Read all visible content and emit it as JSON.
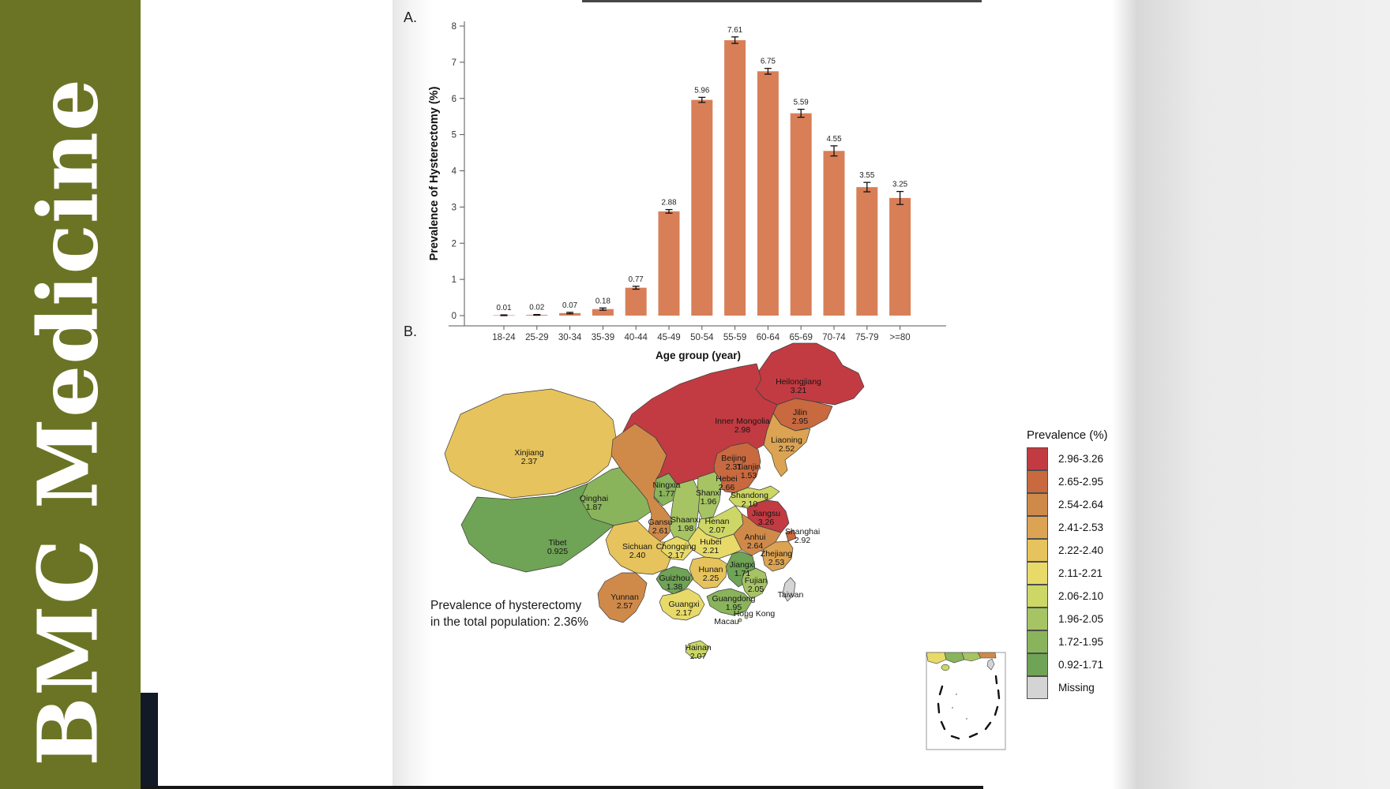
{
  "sidebar": {
    "journal_title": "BMC Medicine",
    "bg_color": "#6b7424"
  },
  "figure": {
    "panel_a_label": "A.",
    "panel_b_label": "B."
  },
  "chart_data": [
    {
      "type": "bar",
      "title": "",
      "xlabel": "Age group (year)",
      "ylabel": "Prevalence of Hysterectomy (%)",
      "categories": [
        "18-24",
        "25-29",
        "30-34",
        "35-39",
        "40-44",
        "45-49",
        "50-54",
        "55-59",
        "60-64",
        "65-69",
        "70-74",
        "75-79",
        ">=80"
      ],
      "values": [
        0.01,
        0.02,
        0.07,
        0.18,
        0.77,
        2.88,
        5.96,
        7.61,
        6.75,
        5.59,
        4.55,
        3.55,
        3.25
      ],
      "value_labels": [
        "0.01",
        "0.02",
        "0.07",
        "0.18",
        "0.77",
        "2.88",
        "5.96",
        "7.61",
        "6.75",
        "5.59",
        "4.55",
        "3.55",
        "3.25"
      ],
      "errors": [
        0.01,
        0.01,
        0.02,
        0.03,
        0.04,
        0.05,
        0.07,
        0.09,
        0.08,
        0.11,
        0.14,
        0.13,
        0.18
      ],
      "ylim": [
        0,
        8
      ],
      "yticks": [
        0,
        1,
        2,
        3,
        4,
        5,
        6,
        7,
        8
      ],
      "bar_color": "#d87f58",
      "error_color": "#111111",
      "grid": false,
      "legend_position": "none"
    },
    {
      "type": "heatmap",
      "subtype": "china-province-choropleth",
      "legend_title": "Prevalence (%)",
      "annotation_line1": "Prevalence of hysterectomy",
      "annotation_line2": "in the total population: 2.36%",
      "missing_label": "Missing",
      "legend": [
        {
          "label": "2.96-3.26",
          "color": "#c23b42"
        },
        {
          "label": "2.65-2.95",
          "color": "#c8693f"
        },
        {
          "label": "2.54-2.64",
          "color": "#cf8a4a"
        },
        {
          "label": "2.41-2.53",
          "color": "#dca452"
        },
        {
          "label": "2.22-2.40",
          "color": "#e6c35c"
        },
        {
          "label": "2.11-2.21",
          "color": "#e7da69"
        },
        {
          "label": "2.06-2.10",
          "color": "#ccd765"
        },
        {
          "label": "1.96-2.05",
          "color": "#a6c464"
        },
        {
          "label": "1.72-1.95",
          "color": "#8ab45c"
        },
        {
          "label": "0.92-1.71",
          "color": "#6fa355"
        },
        {
          "label": "Missing",
          "color": "#d4d4d4",
          "missing": true
        }
      ],
      "regions": [
        {
          "key": "heilongjiang",
          "name": "Heilongjiang",
          "value": "3.21"
        },
        {
          "key": "inner_mongolia",
          "name": "Inner Mongolia",
          "value": "2.98"
        },
        {
          "key": "jilin",
          "name": "Jilin",
          "value": "2.95"
        },
        {
          "key": "liaoning",
          "name": "Liaoning",
          "value": "2.52"
        },
        {
          "key": "xinjiang",
          "name": "Xinjiang",
          "value": "2.37"
        },
        {
          "key": "tibet",
          "name": "Tibet",
          "value": "0.925"
        },
        {
          "key": "qinghai",
          "name": "Qinghai",
          "value": "1.87"
        },
        {
          "key": "gansu",
          "name": "Gansu",
          "value": "2.61"
        },
        {
          "key": "ningxia",
          "name": "Ningxia",
          "value": "1.77"
        },
        {
          "key": "beijing",
          "name": "Beijing",
          "value": "2.31"
        },
        {
          "key": "tianjin",
          "name": "Tianjin",
          "value": "1.53"
        },
        {
          "key": "hebei",
          "name": "Hebei",
          "value": "2.66"
        },
        {
          "key": "shanxi",
          "name": "Shanxi",
          "value": "1.96"
        },
        {
          "key": "shandong",
          "name": "Shandong",
          "value": "2.10"
        },
        {
          "key": "henan",
          "name": "Henan",
          "value": "2.07"
        },
        {
          "key": "shaanxi",
          "name": "Shaanxi",
          "value": "1.98"
        },
        {
          "key": "jiangsu",
          "name": "Jiangsu",
          "value": "3.26"
        },
        {
          "key": "shanghai",
          "name": "Shanghai",
          "value": "2.92"
        },
        {
          "key": "anhui",
          "name": "Anhui",
          "value": "2.64"
        },
        {
          "key": "zhejiang",
          "name": "Zhejiang",
          "value": "2.53"
        },
        {
          "key": "hubei",
          "name": "Hubei",
          "value": "2.21"
        },
        {
          "key": "chongqing",
          "name": "Chongqing",
          "value": "2.17"
        },
        {
          "key": "sichuan",
          "name": "Sichuan",
          "value": "2.40"
        },
        {
          "key": "hunan",
          "name": "Hunan",
          "value": "2.25"
        },
        {
          "key": "jiangxi",
          "name": "Jiangxi",
          "value": "1.71"
        },
        {
          "key": "guizhou",
          "name": "Guizhou",
          "value": "1.38"
        },
        {
          "key": "yunnan",
          "name": "Yunnan",
          "value": "2.57"
        },
        {
          "key": "guangxi",
          "name": "Guangxi",
          "value": "2.17"
        },
        {
          "key": "guangdong",
          "name": "Guangdong",
          "value": "1.95"
        },
        {
          "key": "fujian",
          "name": "Fujian",
          "value": "2.05"
        },
        {
          "key": "hainan",
          "name": "Hainan",
          "value": "2.07"
        },
        {
          "key": "taiwan",
          "name": "Taiwan",
          "value": null,
          "missing": true
        },
        {
          "key": "hong_kong",
          "name": "Hong Kong",
          "value": null
        },
        {
          "key": "macau",
          "name": "Macau",
          "value": null
        }
      ]
    }
  ]
}
